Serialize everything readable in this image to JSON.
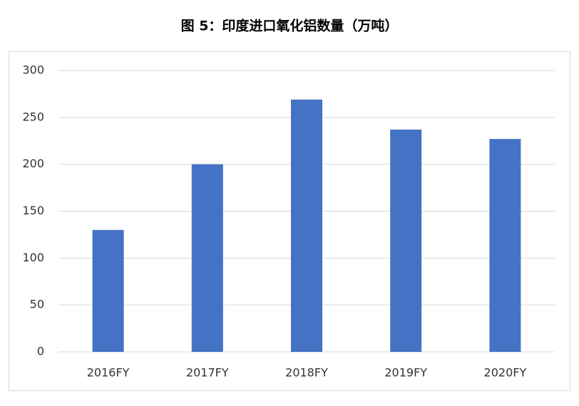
{
  "chart_data": {
    "type": "bar",
    "title": "图 5：印度进口氧化铝数量（万吨）",
    "categories": [
      "2016FY",
      "2017FY",
      "2018FY",
      "2019FY",
      "2020FY"
    ],
    "values": [
      130,
      200,
      269,
      237,
      227
    ],
    "color": "#4472c4",
    "ylim": [
      0,
      300
    ],
    "yticks": [
      0,
      50,
      100,
      150,
      200,
      250,
      300
    ],
    "grid": true
  }
}
